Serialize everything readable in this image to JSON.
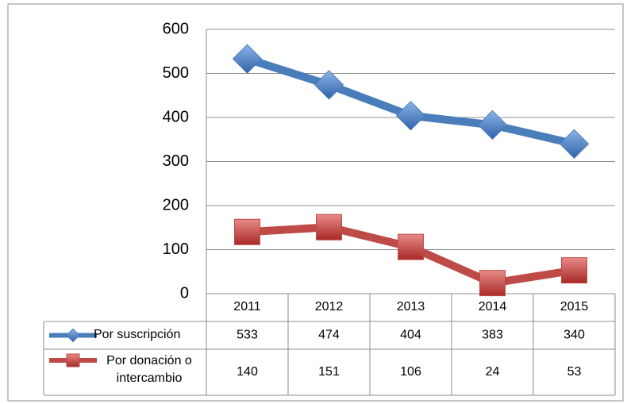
{
  "chart_data": {
    "type": "line",
    "categories": [
      "2011",
      "2012",
      "2013",
      "2014",
      "2015"
    ],
    "series": [
      {
        "name": "Por suscripción",
        "color": "#4a7ebb",
        "marker": "diamond",
        "values": [
          533,
          474,
          404,
          383,
          340
        ]
      },
      {
        "name": "Por donación o intercambio",
        "color": "#be4b48",
        "marker": "square",
        "values": [
          140,
          151,
          106,
          24,
          53
        ]
      }
    ],
    "ylim": [
      0,
      600
    ],
    "yticks": [
      0,
      100,
      200,
      300,
      400,
      500,
      600
    ],
    "grid": true
  }
}
